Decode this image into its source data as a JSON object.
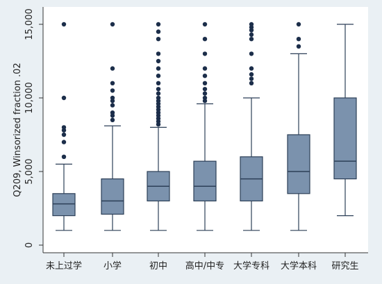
{
  "chart_data": {
    "type": "box",
    "ylabel": "Q209, Winsorized fraction .02",
    "ylim": [
      0,
      15000
    ],
    "yticks": [
      0,
      5000,
      10000,
      15000
    ],
    "ytick_labels": [
      "0",
      "5,000",
      "10,000",
      "15,000"
    ],
    "categories": [
      "未上过学",
      "小学",
      "初中",
      "高中/中专",
      "大学专科",
      "大学本科",
      "研究生"
    ],
    "series": [
      {
        "boxes": [
          {
            "min": 1000,
            "q1": 2000,
            "median": 2800,
            "q3": 3500,
            "max": 5500,
            "outliers": [
              6000,
              7000,
              7500,
              7800,
              8000,
              10000,
              15000
            ]
          },
          {
            "min": 1000,
            "q1": 2100,
            "median": 3000,
            "q3": 4500,
            "max": 8100,
            "outliers": [
              8500,
              8800,
              9000,
              9500,
              9800,
              10000,
              10500,
              11000,
              12000,
              15000
            ]
          },
          {
            "min": 1000,
            "q1": 3000,
            "median": 4000,
            "q3": 5000,
            "max": 8000,
            "outliers": [
              8200,
              8400,
              8600,
              8800,
              9000,
              9200,
              9400,
              9600,
              9800,
              10000,
              10300,
              10600,
              11000,
              11500,
              12000,
              12500,
              13000,
              14000,
              14500,
              15000
            ]
          },
          {
            "min": 1000,
            "q1": 3000,
            "median": 4000,
            "q3": 5700,
            "max": 9600,
            "outliers": [
              9800,
              10000,
              10300,
              10600,
              11000,
              11500,
              12000,
              13000,
              14000,
              15000
            ]
          },
          {
            "min": 1000,
            "q1": 3000,
            "median": 4500,
            "q3": 6000,
            "max": 10000,
            "outliers": [
              11000,
              11300,
              11600,
              12000,
              13000,
              14000,
              14300,
              14600,
              14800,
              15000
            ]
          },
          {
            "min": 1000,
            "q1": 3500,
            "median": 5000,
            "q3": 7500,
            "max": 13000,
            "outliers": [
              13500,
              14000,
              15000
            ]
          },
          {
            "min": 2000,
            "q1": 4500,
            "median": 5700,
            "q3": 10000,
            "max": 15000,
            "outliers": []
          }
        ]
      }
    ],
    "box_color": "#7b92ad",
    "edge_color": "#2c3f57",
    "outlier_color": "#1c2e4a",
    "grid": false
  }
}
